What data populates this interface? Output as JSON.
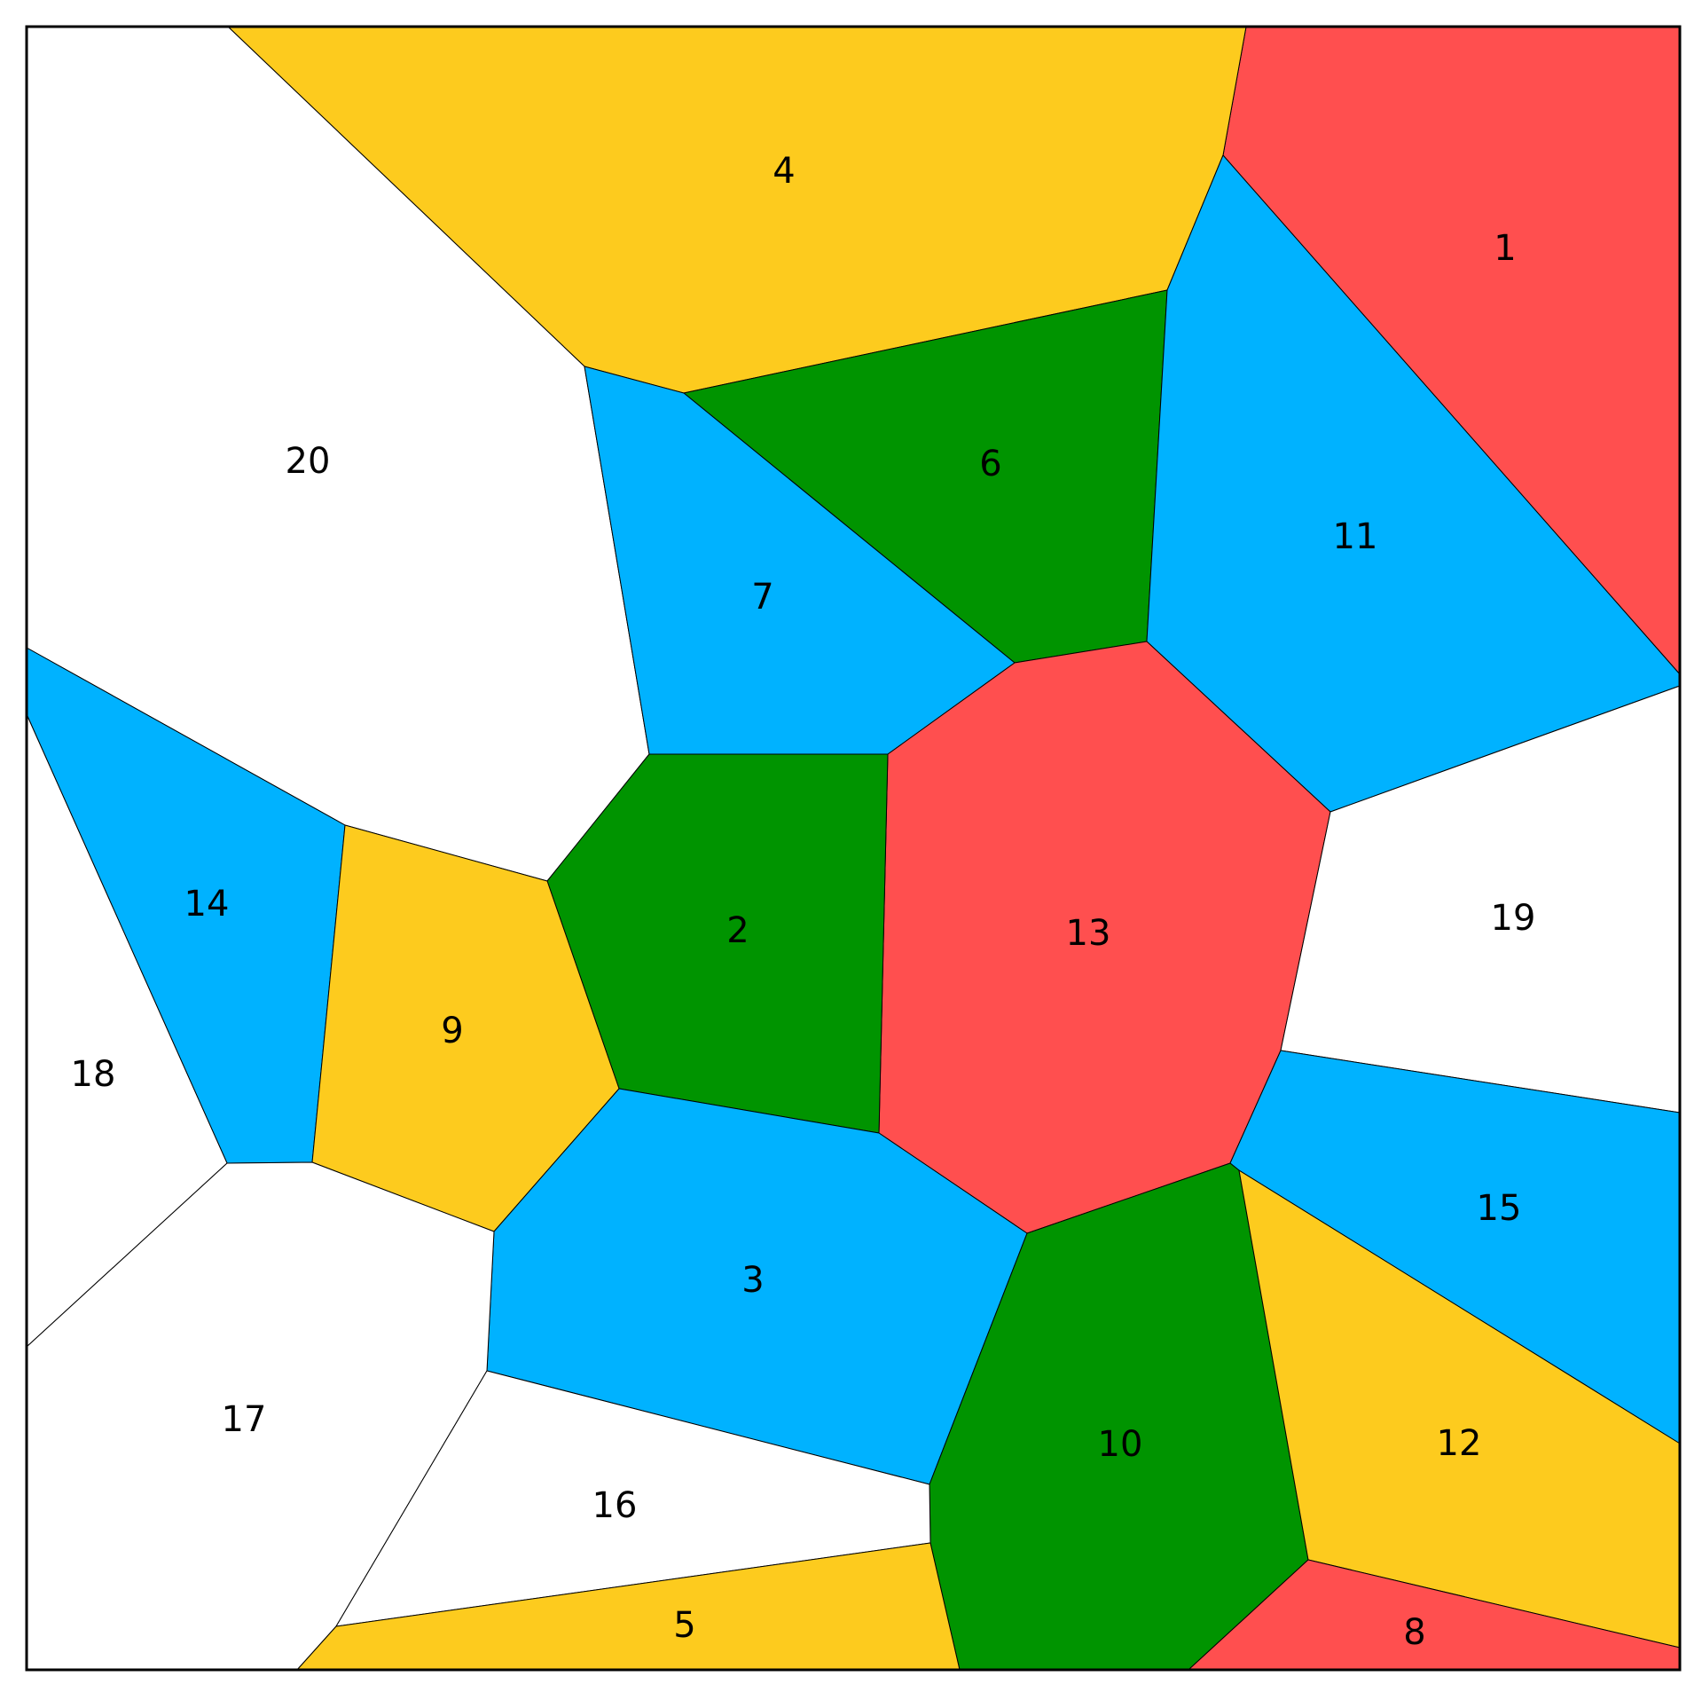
{
  "title": "",
  "palette": {
    "red": "#FF4F4F",
    "yellow": "#FDCB1E",
    "blue": "#00B2FF",
    "green": "#009400",
    "white": "#FFFFFF"
  },
  "regions": [
    {
      "id": "1",
      "label": "1",
      "color": "red"
    },
    {
      "id": "2",
      "label": "2",
      "color": "green"
    },
    {
      "id": "3",
      "label": "3",
      "color": "blue"
    },
    {
      "id": "4",
      "label": "4",
      "color": "yellow"
    },
    {
      "id": "5",
      "label": "5",
      "color": "yellow"
    },
    {
      "id": "6",
      "label": "6",
      "color": "green"
    },
    {
      "id": "7",
      "label": "7",
      "color": "blue"
    },
    {
      "id": "8",
      "label": "8",
      "color": "red"
    },
    {
      "id": "9",
      "label": "9",
      "color": "yellow"
    },
    {
      "id": "10",
      "label": "10",
      "color": "green"
    },
    {
      "id": "11",
      "label": "11",
      "color": "blue"
    },
    {
      "id": "12",
      "label": "12",
      "color": "yellow"
    },
    {
      "id": "13",
      "label": "13",
      "color": "red"
    },
    {
      "id": "14",
      "label": "14",
      "color": "blue"
    },
    {
      "id": "15",
      "label": "15",
      "color": "blue"
    },
    {
      "id": "16",
      "label": "16",
      "color": "white"
    },
    {
      "id": "17",
      "label": "17",
      "color": "white"
    },
    {
      "id": "18",
      "label": "18",
      "color": "white"
    },
    {
      "id": "19",
      "label": "19",
      "color": "white"
    },
    {
      "id": "20",
      "label": "20",
      "color": "white"
    }
  ]
}
